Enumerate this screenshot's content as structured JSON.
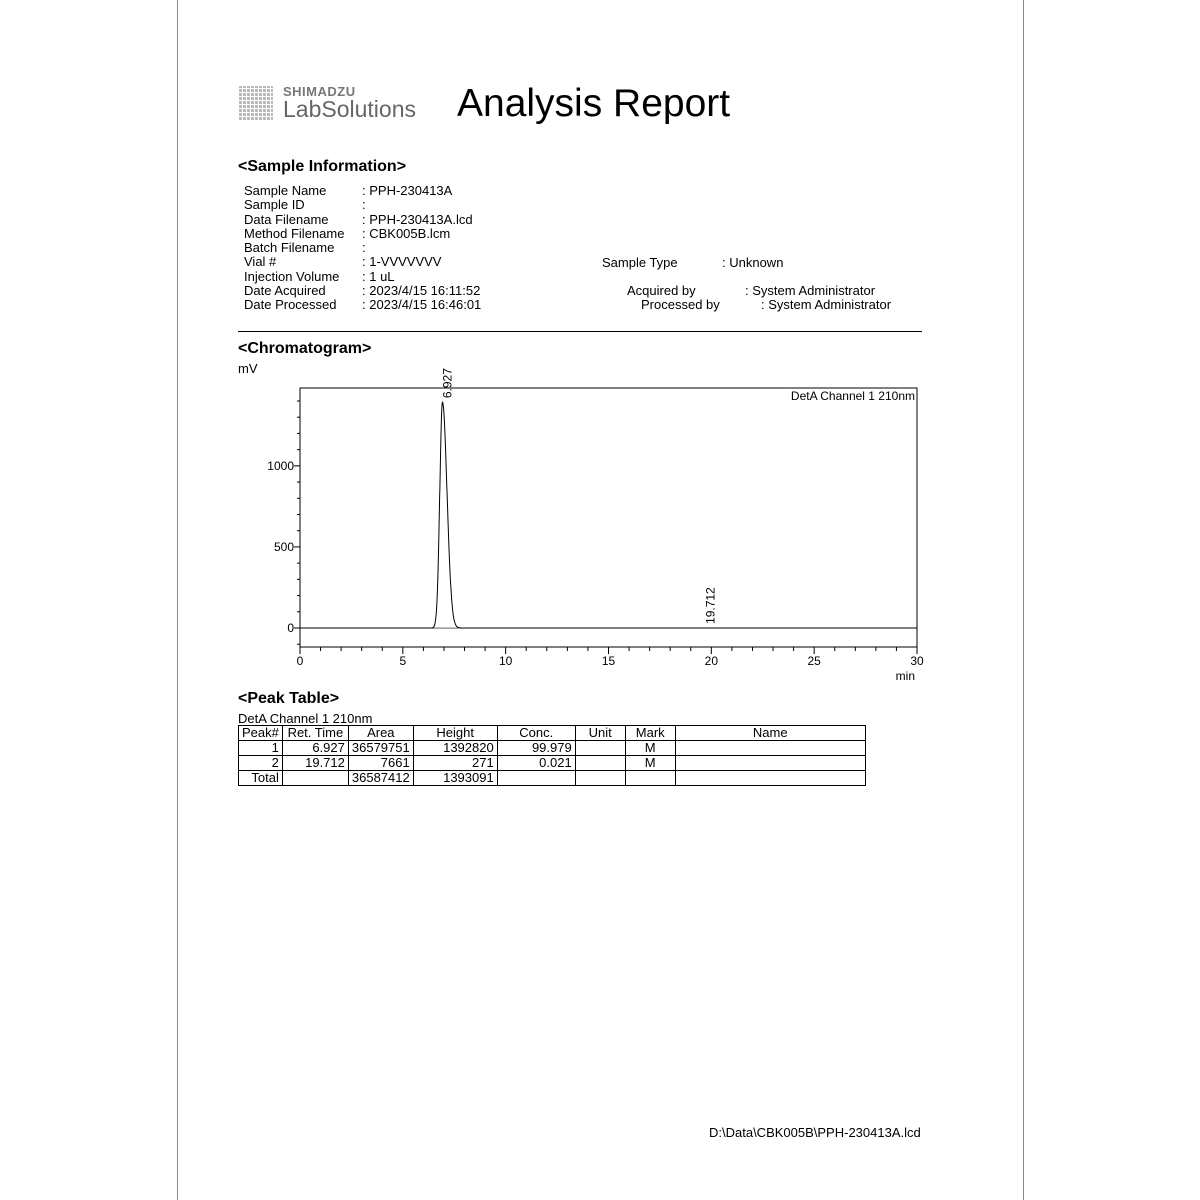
{
  "brand": {
    "company": "SHIMADZU",
    "product": "LabSolutions"
  },
  "title": "Analysis Report",
  "sample_info": {
    "heading": "<Sample Information>",
    "rows": [
      {
        "label": "Sample Name",
        "value": ": PPH-230413A"
      },
      {
        "label": "Sample ID",
        "value": ":"
      },
      {
        "label": "Data Filename",
        "value": ": PPH-230413A.lcd"
      },
      {
        "label": "Method Filename",
        "value": ": CBK005B.lcm"
      },
      {
        "label": "Batch Filename",
        "value": ":"
      },
      {
        "label": "Vial #",
        "value": ": 1-VVVVVVV"
      },
      {
        "label": "Injection Volume",
        "value": ": 1 uL"
      },
      {
        "label": "Date Acquired",
        "value": ": 2023/4/15 16:11:52"
      },
      {
        "label": "Date Processed",
        "value": ": 2023/4/15 16:46:01"
      }
    ],
    "sample_type_label": "Sample Type",
    "sample_type": ": Unknown",
    "acquired_by_label": "Acquired by",
    "acquired_by": ": System Administrator",
    "processed_by_label": "Processed by",
    "processed_by": ": System Administrator"
  },
  "chromatogram": {
    "heading": "<Chromatogram>"
  },
  "chart_data": {
    "type": "line",
    "ylabel": "mV",
    "xlabel": "min",
    "legend": "DetA Channel 1 210nm",
    "xlim": [
      0,
      30
    ],
    "ylim": [
      -117,
      1480
    ],
    "xticks": [
      "0",
      "5",
      "10",
      "15",
      "20",
      "25",
      "30"
    ],
    "yticks": [
      "0",
      "500",
      "1000"
    ],
    "peaks": [
      {
        "label": "6.927",
        "rt": 6.927,
        "height_mV": 1392.8
      },
      {
        "label": "19.712",
        "rt": 19.712,
        "height_mV": 0.271
      }
    ]
  },
  "peak_table": {
    "heading": "<Peak Table>",
    "channel": "DetA Channel 1 210nm",
    "columns": [
      "Peak#",
      "Ret. Time",
      "Area",
      "Height",
      "Conc.",
      "Unit",
      "Mark",
      "Name"
    ],
    "rows": [
      [
        "1",
        "6.927",
        "36579751",
        "1392820",
        "99.979",
        "",
        "M",
        ""
      ],
      [
        "2",
        "19.712",
        "7661",
        "271",
        "0.021",
        "",
        "M",
        ""
      ],
      [
        "Total",
        "",
        "36587412",
        "1393091",
        "",
        "",
        "",
        ""
      ]
    ]
  },
  "footer": {
    "path": "D:\\Data\\CBK005B\\PPH-230413A.lcd"
  }
}
